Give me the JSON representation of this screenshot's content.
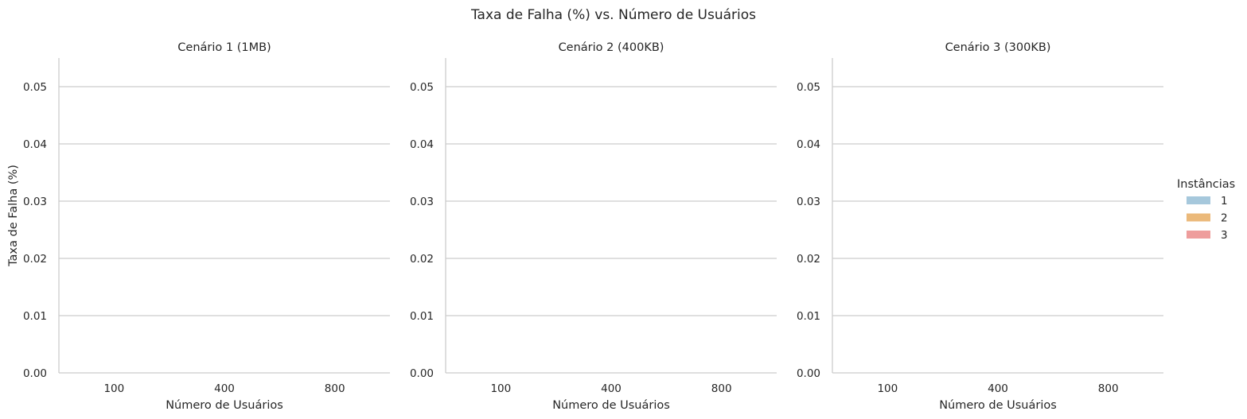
{
  "chart_data": {
    "title": "Taxa de Falha (%) vs. Número de Usuários",
    "type": "bar",
    "ylabel": "Taxa de Falha (%)",
    "xlabel": "Número de Usuários",
    "ylim": [
      0,
      0.055
    ],
    "yticks": [
      "0.00",
      "0.01",
      "0.02",
      "0.03",
      "0.04",
      "0.05"
    ],
    "ytick_values": [
      0,
      0.01,
      0.02,
      0.03,
      0.04,
      0.05
    ],
    "grid": "horizontal",
    "categories": [
      "100",
      "400",
      "800"
    ],
    "legend": {
      "title": "Instâncias",
      "placement": "right",
      "entries": [
        {
          "label": "1",
          "color": "#a6c8dc"
        },
        {
          "label": "2",
          "color": "#ebb97a"
        },
        {
          "label": "3",
          "color": "#ee9d9c"
        }
      ]
    },
    "panels": [
      {
        "title": "Cenário 1 (1MB)",
        "series": [
          {
            "name": "1",
            "values": [
              0,
              0,
              0
            ]
          },
          {
            "name": "2",
            "values": [
              0,
              0,
              0
            ]
          },
          {
            "name": "3",
            "values": [
              0,
              0,
              0
            ]
          }
        ]
      },
      {
        "title": "Cenário 2 (400KB)",
        "series": [
          {
            "name": "1",
            "values": [
              0,
              0,
              0
            ]
          },
          {
            "name": "2",
            "values": [
              0,
              0,
              0
            ]
          },
          {
            "name": "3",
            "values": [
              0,
              0,
              0
            ]
          }
        ]
      },
      {
        "title": "Cenário 3 (300KB)",
        "series": [
          {
            "name": "1",
            "values": [
              0,
              0,
              0
            ]
          },
          {
            "name": "2",
            "values": [
              0,
              0,
              0
            ]
          },
          {
            "name": "3",
            "values": [
              0,
              0,
              0
            ]
          }
        ]
      }
    ]
  }
}
